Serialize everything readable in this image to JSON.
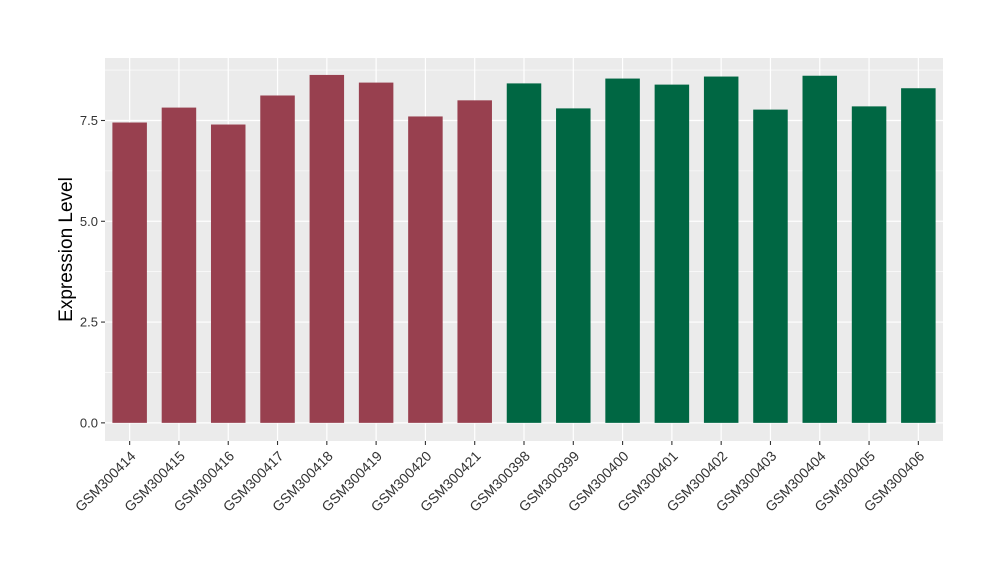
{
  "chart_data": {
    "type": "bar",
    "title": "",
    "xlabel": "",
    "ylabel": "Expression Level",
    "ylim": [
      -0.45,
      9.05
    ],
    "yticks": [
      0.0,
      2.5,
      5.0,
      7.5
    ],
    "ytick_labels": [
      "0.0",
      "2.5",
      "5.0",
      "7.5"
    ],
    "grid": true,
    "legend": "none",
    "categories": [
      "GSM300414",
      "GSM300415",
      "GSM300416",
      "GSM300417",
      "GSM300418",
      "GSM300419",
      "GSM300420",
      "GSM300421",
      "GSM300398",
      "GSM300399",
      "GSM300400",
      "GSM300401",
      "GSM300402",
      "GSM300403",
      "GSM300404",
      "GSM300405",
      "GSM300406"
    ],
    "values": [
      7.45,
      7.82,
      7.4,
      8.12,
      8.63,
      8.44,
      7.6,
      8.0,
      8.42,
      7.8,
      8.54,
      8.39,
      8.59,
      7.77,
      8.61,
      7.85,
      8.3
    ],
    "groups": [
      0,
      0,
      0,
      0,
      0,
      0,
      0,
      0,
      1,
      1,
      1,
      1,
      1,
      1,
      1,
      1,
      1
    ],
    "group_colors": [
      "#98404F",
      "#006743"
    ],
    "panel_color": "#EBEBEB",
    "grid_color": "#FFFFFF"
  }
}
